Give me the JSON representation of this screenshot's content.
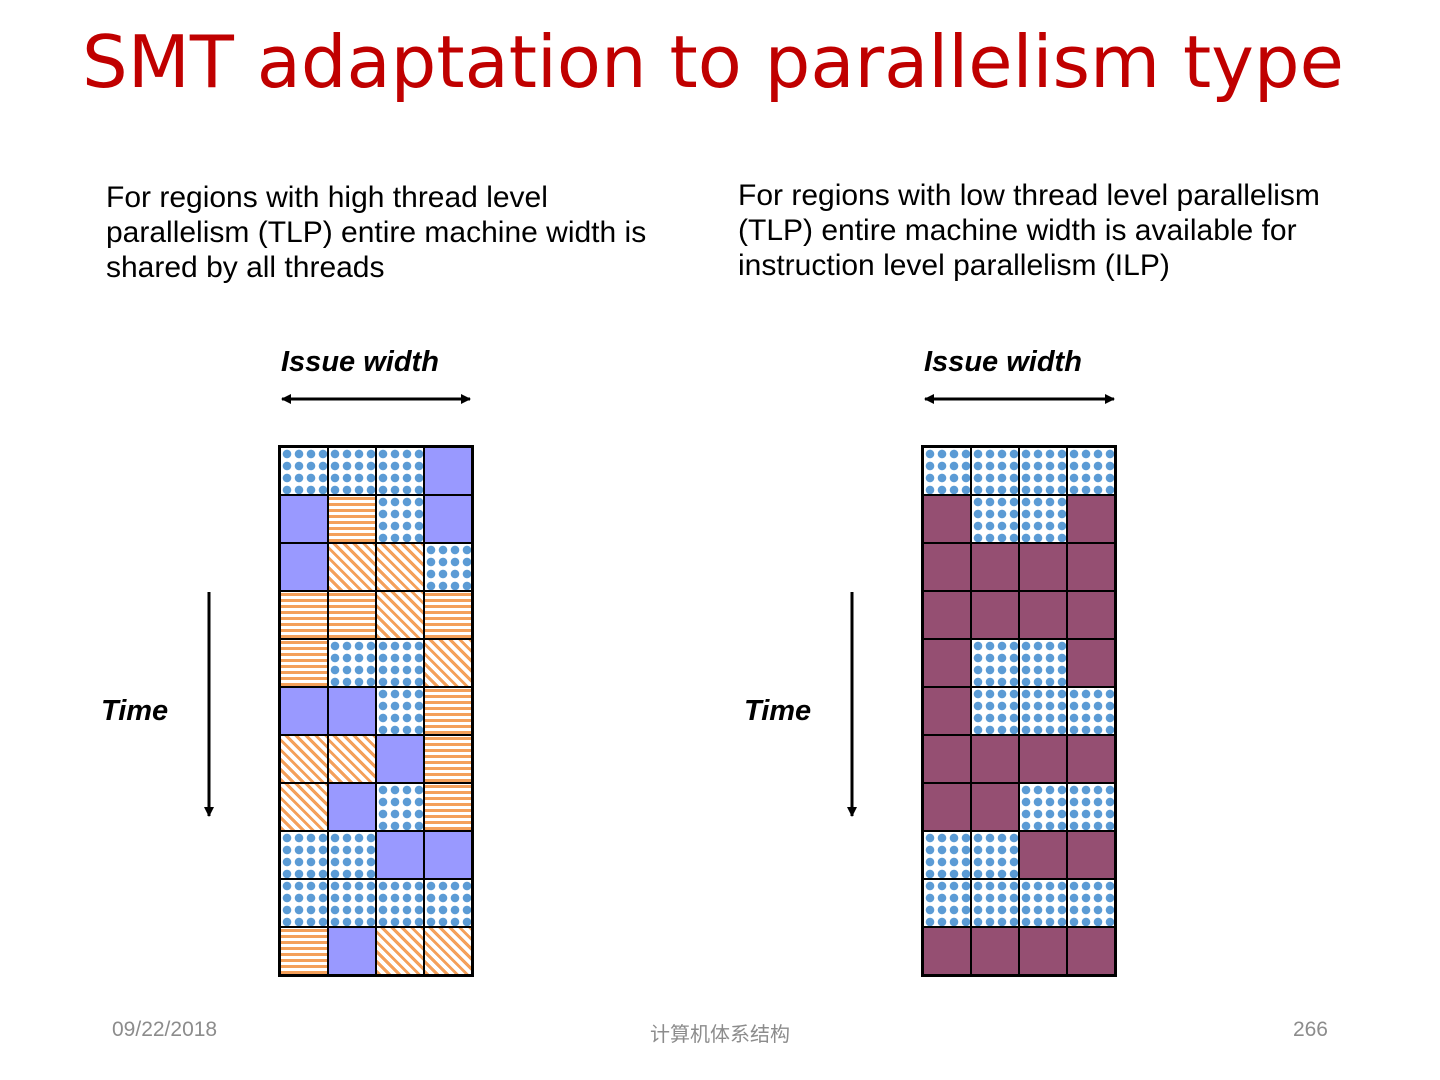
{
  "title": "SMT adaptation to parallelism type",
  "left_panel": {
    "description": "For regions with high thread level parallelism (TLP) entire machine width is shared by all threads",
    "issue_width_label": "Issue width",
    "time_label": "Time",
    "rows": [
      [
        "checker",
        "checker",
        "checker",
        "solid"
      ],
      [
        "solid",
        "hstripe",
        "checker",
        "solid"
      ],
      [
        "solid",
        "dstripe",
        "dstripe",
        "checker"
      ],
      [
        "hstripe",
        "hstripe",
        "dstripe",
        "hstripe"
      ],
      [
        "hstripe",
        "checker",
        "checker",
        "dstripe"
      ],
      [
        "solid",
        "solid",
        "checker",
        "hstripe"
      ],
      [
        "dstripe",
        "dstripe",
        "solid",
        "hstripe"
      ],
      [
        "dstripe",
        "solid",
        "checker",
        "hstripe"
      ],
      [
        "checker",
        "checker",
        "solid",
        "solid"
      ],
      [
        "checker",
        "checker",
        "checker",
        "checker"
      ],
      [
        "hstripe",
        "solid",
        "dstripe",
        "dstripe"
      ]
    ]
  },
  "right_panel": {
    "description": "For regions with low thread level parallelism (TLP) entire machine width is available for instruction level parallelism (ILP)",
    "issue_width_label": "Issue width",
    "time_label": "Time",
    "rows": [
      [
        "checker",
        "checker",
        "checker",
        "checker"
      ],
      [
        "maroon",
        "checker",
        "checker",
        "maroon"
      ],
      [
        "maroon",
        "maroon",
        "maroon",
        "maroon"
      ],
      [
        "maroon",
        "maroon",
        "maroon",
        "maroon"
      ],
      [
        "maroon",
        "checker",
        "checker",
        "maroon"
      ],
      [
        "maroon",
        "checker",
        "checker",
        "checker"
      ],
      [
        "maroon",
        "maroon",
        "maroon",
        "maroon"
      ],
      [
        "maroon",
        "maroon",
        "checker",
        "checker"
      ],
      [
        "checker",
        "checker",
        "maroon",
        "maroon"
      ],
      [
        "checker",
        "checker",
        "checker",
        "checker"
      ],
      [
        "maroon",
        "maroon",
        "maroon",
        "maroon"
      ]
    ]
  },
  "colors": {
    "title": "#c00000",
    "checker_blue": "#5b9bd5",
    "solid_lavender": "#9999ff",
    "stripe_orange": "#f4a05a",
    "maroon": "#954f72",
    "footer_gray": "#8c8c8c"
  },
  "footer": {
    "date": "09/22/2018",
    "course": "计算机体系结构",
    "page_number": "266"
  }
}
